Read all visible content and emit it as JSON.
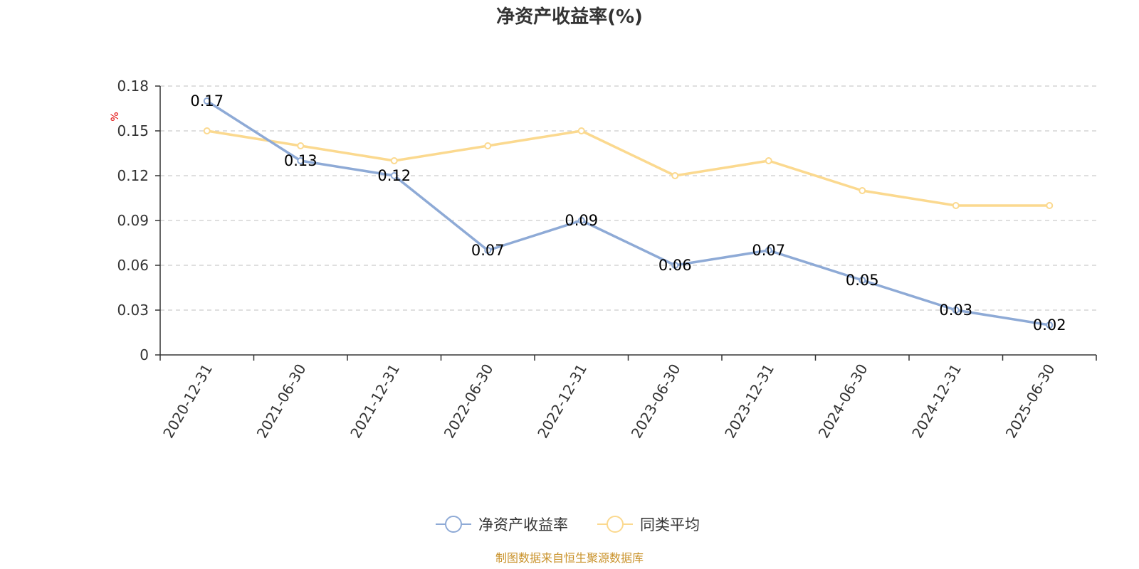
{
  "chart_data": {
    "type": "line",
    "title": "净资产收益率(%)",
    "ylabel": "%",
    "ylim": [
      0,
      0.18
    ],
    "yticks": [
      "0",
      "0.03",
      "0.06",
      "0.09",
      "0.12",
      "0.15",
      "0.18"
    ],
    "grid": true,
    "legend_position": "bottom",
    "categories": [
      "2020-12-31",
      "2021-06-30",
      "2021-12-31",
      "2022-06-30",
      "2022-12-31",
      "2023-06-30",
      "2023-12-31",
      "2024-06-30",
      "2024-12-31",
      "2025-06-30"
    ],
    "series": [
      {
        "name": "净资产收益率",
        "color": "#8eaad6",
        "values": [
          0.17,
          0.13,
          0.12,
          0.07,
          0.09,
          0.06,
          0.07,
          0.05,
          0.03,
          0.02
        ],
        "labels": [
          "0.17",
          "0.13",
          "0.12",
          "0.07",
          "0.09",
          "0.06",
          "0.07",
          "0.05",
          "0.03",
          "0.02"
        ],
        "show_labels": true
      },
      {
        "name": "同类平均",
        "color": "#fbd98f",
        "values": [
          0.15,
          0.14,
          0.13,
          0.14,
          0.15,
          0.12,
          0.13,
          0.11,
          0.1,
          0.1
        ],
        "show_labels": false
      }
    ]
  },
  "source": "制图数据来自恒生聚源数据库"
}
